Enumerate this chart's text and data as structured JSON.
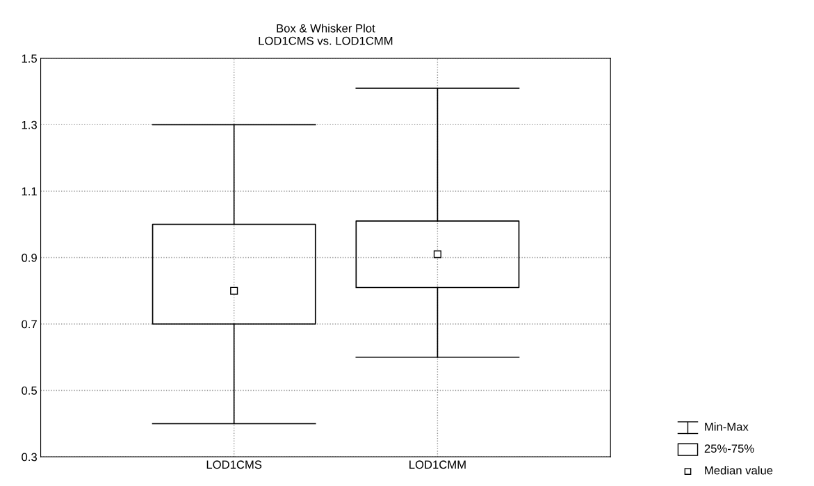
{
  "chart_data": {
    "type": "box",
    "title": "Box & Whisker Plot\nLOD1CMS vs. LOD1CMM",
    "categories": [
      "LOD1CMS",
      "LOD1CMM"
    ],
    "boxes": [
      {
        "low": 0.4,
        "q1": 0.7,
        "median": 0.8,
        "q3": 1.0,
        "high": 1.3
      },
      {
        "low": 0.6,
        "q1": 0.81,
        "median": 0.91,
        "q3": 1.01,
        "high": 1.41
      }
    ],
    "ylim": [
      0.3,
      1.5
    ],
    "yticks": [
      {
        "value": 0.3,
        "label": "0.3"
      },
      {
        "value": 0.5,
        "label": "0.5"
      },
      {
        "value": 0.7,
        "label": "0.7"
      },
      {
        "value": 0.9,
        "label": "0.9"
      },
      {
        "value": 1.1,
        "label": "1.1"
      },
      {
        "value": 1.3,
        "label": "1.3"
      },
      {
        "value": 1.5,
        "label": "1.5"
      }
    ],
    "grid": true,
    "marker": "square",
    "annotations": [
      "Min-Max",
      "25%-75%",
      "Median value"
    ]
  }
}
